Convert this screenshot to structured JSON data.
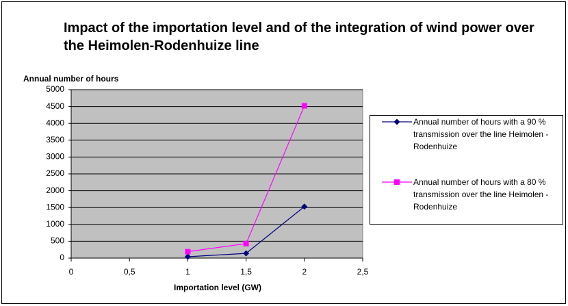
{
  "chart_data": {
    "type": "line",
    "title": "Impact of the importation level and of the integration of wind power over the Heimolen-Rodenhuize line",
    "ylabel": "Annual number of hours",
    "xlabel": "Importation level (GW)",
    "x": [
      1,
      1.5,
      2
    ],
    "series": [
      {
        "name": "Annual number of hours with a 90 % transmission over the line  Heimolen - Rodenhuize",
        "color": "#000080",
        "marker": "diamond",
        "values": [
          40,
          140,
          1530
        ]
      },
      {
        "name": "Annual number of hours with a 80 % transmission over the line Heimolen - Rodenhuize",
        "color": "#ff00ff",
        "marker": "square",
        "values": [
          190,
          430,
          4520
        ]
      }
    ],
    "xlim": [
      0,
      2.5
    ],
    "xticks": [
      0,
      {
        "value": 0.5,
        "label": "0,5"
      },
      1,
      {
        "value": 1.5,
        "label": "1,5"
      },
      2,
      {
        "value": 2.5,
        "label": "2,5"
      }
    ],
    "ylim": [
      0,
      5000
    ],
    "yticks": [
      0,
      500,
      1000,
      1500,
      2000,
      2500,
      3000,
      3500,
      4000,
      4500,
      5000
    ],
    "grid": true,
    "legend": "right",
    "plot_background": "#c0c0c0"
  }
}
